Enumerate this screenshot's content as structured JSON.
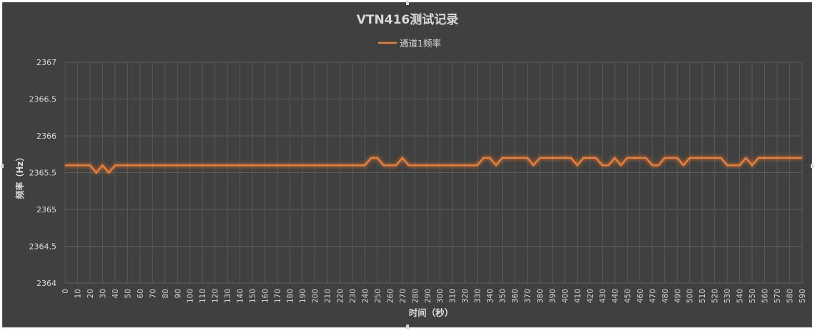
{
  "chart_data": {
    "type": "line",
    "title": "VTN416测试记录",
    "xlabel": "时间（秒）",
    "ylabel": "频率（Hz）",
    "ylim": [
      2364,
      2367
    ],
    "yticks": [
      2364,
      2364.5,
      2365,
      2365.5,
      2366,
      2366.5,
      2367
    ],
    "ytick_labels": [
      "2364",
      "2364.5",
      "2365",
      "2365.5",
      "2366",
      "2366.5",
      "2367"
    ],
    "xlim": [
      0,
      590
    ],
    "xtick_step": 10,
    "grid": true,
    "legend": "top-center",
    "series": [
      {
        "name": "通道1频率",
        "color": "#ed7d31",
        "x": [
          0,
          5,
          10,
          15,
          20,
          25,
          30,
          35,
          40,
          45,
          50,
          55,
          60,
          65,
          70,
          75,
          80,
          85,
          90,
          95,
          100,
          105,
          110,
          115,
          120,
          125,
          130,
          135,
          140,
          145,
          150,
          155,
          160,
          165,
          170,
          175,
          180,
          185,
          190,
          195,
          200,
          205,
          210,
          215,
          220,
          225,
          230,
          235,
          240,
          245,
          250,
          255,
          260,
          265,
          270,
          275,
          280,
          285,
          290,
          295,
          300,
          305,
          310,
          315,
          320,
          325,
          330,
          335,
          340,
          345,
          350,
          355,
          360,
          365,
          370,
          375,
          380,
          385,
          390,
          395,
          400,
          405,
          410,
          415,
          420,
          425,
          430,
          435,
          440,
          445,
          450,
          455,
          460,
          465,
          470,
          475,
          480,
          485,
          490,
          495,
          500,
          505,
          510,
          515,
          520,
          525,
          530,
          535,
          540,
          545,
          550,
          555,
          560,
          565,
          570,
          575,
          580,
          585,
          590
        ],
        "values": [
          2365.6,
          2365.6,
          2365.6,
          2365.6,
          2365.6,
          2365.5,
          2365.6,
          2365.5,
          2365.6,
          2365.6,
          2365.6,
          2365.6,
          2365.6,
          2365.6,
          2365.6,
          2365.6,
          2365.6,
          2365.6,
          2365.6,
          2365.6,
          2365.6,
          2365.6,
          2365.6,
          2365.6,
          2365.6,
          2365.6,
          2365.6,
          2365.6,
          2365.6,
          2365.6,
          2365.6,
          2365.6,
          2365.6,
          2365.6,
          2365.6,
          2365.6,
          2365.6,
          2365.6,
          2365.6,
          2365.6,
          2365.6,
          2365.6,
          2365.6,
          2365.6,
          2365.6,
          2365.6,
          2365.6,
          2365.6,
          2365.6,
          2365.7,
          2365.7,
          2365.6,
          2365.6,
          2365.6,
          2365.7,
          2365.6,
          2365.6,
          2365.6,
          2365.6,
          2365.6,
          2365.6,
          2365.6,
          2365.6,
          2365.6,
          2365.6,
          2365.6,
          2365.6,
          2365.7,
          2365.7,
          2365.6,
          2365.7,
          2365.7,
          2365.7,
          2365.7,
          2365.7,
          2365.6,
          2365.7,
          2365.7,
          2365.7,
          2365.7,
          2365.7,
          2365.7,
          2365.6,
          2365.7,
          2365.7,
          2365.7,
          2365.6,
          2365.6,
          2365.7,
          2365.6,
          2365.7,
          2365.7,
          2365.7,
          2365.7,
          2365.6,
          2365.6,
          2365.7,
          2365.7,
          2365.7,
          2365.6,
          2365.7,
          2365.7,
          2365.7,
          2365.7,
          2365.7,
          2365.7,
          2365.6,
          2365.6,
          2365.6,
          2365.7,
          2365.6,
          2365.7,
          2365.7,
          2365.7,
          2365.7,
          2365.7,
          2365.7,
          2365.7,
          2365.7
        ]
      }
    ]
  }
}
